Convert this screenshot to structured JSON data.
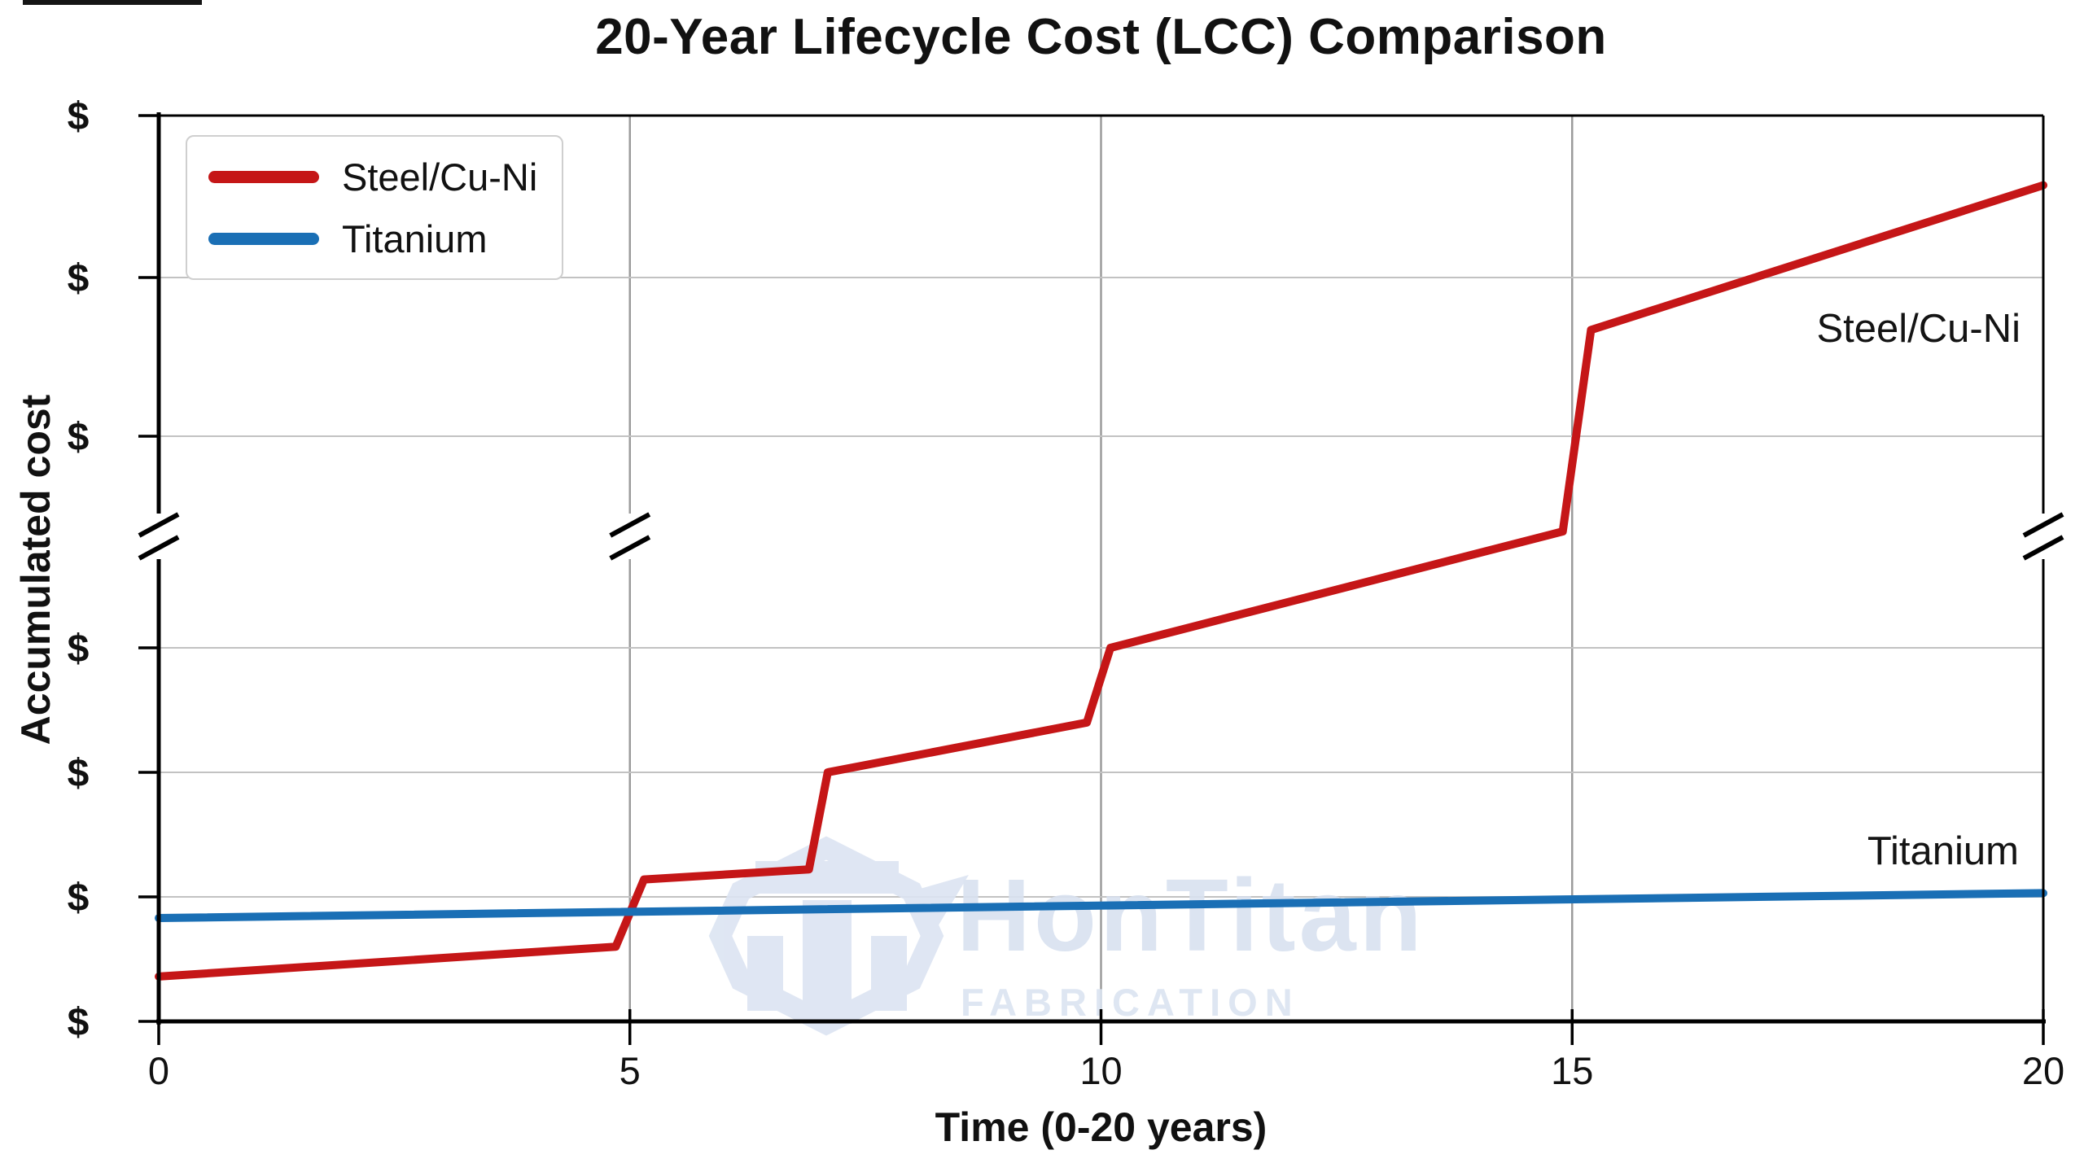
{
  "title": "20-Year Lifecycle Cost (LCC) Comparison",
  "legend": {
    "items": [
      {
        "label": "Steel/Cu-Ni",
        "color": "#c51617"
      },
      {
        "label": "Titanium",
        "color": "#1a6fb5"
      }
    ]
  },
  "annotations": {
    "steel": "Steel/Cu-Ni",
    "titanium": "Titanium"
  },
  "watermark": {
    "name": "HonTitan",
    "subtitle": "FABRICATION",
    "color": "#dbe3f1"
  },
  "colors": {
    "steel_line": "#c51617",
    "titanium_line": "#1a6fb5",
    "vertical_grid": "#9b9b9b",
    "horizontal_grid": "#c2c2c2",
    "axis": "#000000"
  },
  "chart_data": {
    "type": "line",
    "title": "20-Year Lifecycle Cost (LCC) Comparison",
    "xlabel": "Time (0-20 years)",
    "ylabel": "Accumulated cost",
    "xlim": [
      0,
      20
    ],
    "x_ticks": [
      0,
      5,
      10,
      15,
      20
    ],
    "y_tick_labels": [
      "$",
      "$",
      "$",
      "$",
      "$",
      "$",
      "$"
    ],
    "y_axis_break": "broken axis marked with double slashes between 4th and 5th $ ticks, marks drawn on left spine, year-5 gridline and right spine",
    "grid": "vertical gridlines at years 5/10/15, horizontal gridlines at inner $ ticks",
    "legend_position": "upper left",
    "y_units_note": "y values are in $-tick index units (0 = bottom axis, 6 = top spine); dollar amounts are not labeled in the figure",
    "series": [
      {
        "name": "Steel/Cu-Ni",
        "color": "#c51617",
        "points": [
          [
            0,
            0.36
          ],
          [
            4.85,
            0.6
          ],
          [
            5.15,
            1.14
          ],
          [
            6.9,
            1.22
          ],
          [
            7.1,
            2.0
          ],
          [
            9.85,
            2.4
          ],
          [
            10.1,
            3.0
          ],
          [
            14.9,
            3.55
          ],
          [
            15.2,
            4.67
          ],
          [
            20,
            5.57
          ]
        ]
      },
      {
        "name": "Titanium",
        "color": "#1a6fb5",
        "points": [
          [
            0,
            0.83
          ],
          [
            20,
            1.03
          ]
        ]
      }
    ]
  }
}
